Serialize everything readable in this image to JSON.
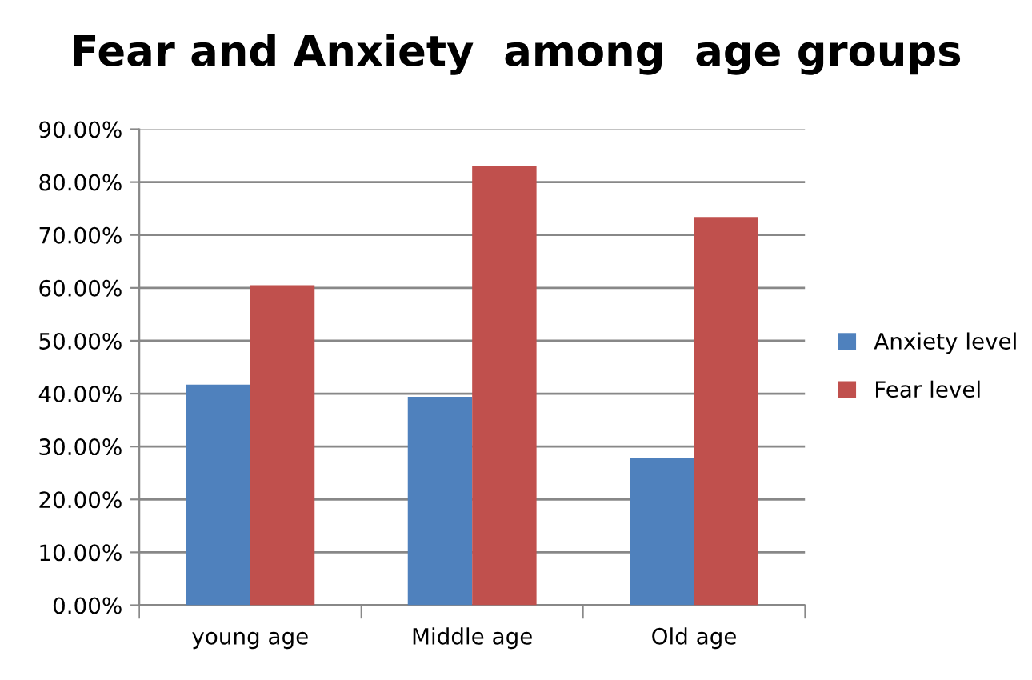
{
  "chart_data": {
    "type": "bar",
    "title": "Fear and Anxiety  among  age groups",
    "categories": [
      "young age",
      "Middle age",
      "Old age"
    ],
    "series": [
      {
        "name": "Anxiety level",
        "color": "#4f81bd",
        "values": [
          41.7,
          39.4,
          27.9
        ]
      },
      {
        "name": "Fear level",
        "color": "#c0504d",
        "values": [
          60.5,
          83.1,
          73.4
        ]
      }
    ],
    "ylim": [
      0,
      90
    ],
    "yticks": [
      {
        "value": 0,
        "label": "0.00%"
      },
      {
        "value": 10,
        "label": "10.00%"
      },
      {
        "value": 20,
        "label": "20.00%"
      },
      {
        "value": 30,
        "label": "30.00%"
      },
      {
        "value": 40,
        "label": "40.00%"
      },
      {
        "value": 50,
        "label": "50.00%"
      },
      {
        "value": 60,
        "label": "60.00%"
      },
      {
        "value": 70,
        "label": "70.00%"
      },
      {
        "value": 80,
        "label": "80.00%"
      },
      {
        "value": 90,
        "label": "90.00%"
      }
    ],
    "grid": "y",
    "legend": "right"
  }
}
